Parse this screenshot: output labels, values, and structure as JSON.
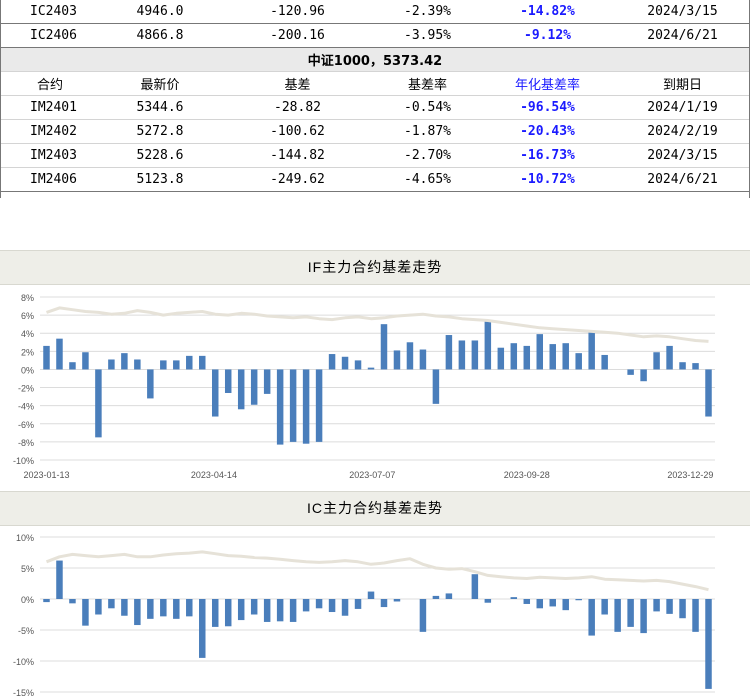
{
  "table": {
    "top_rows": [
      {
        "contract": "IC2403",
        "price": "4946.0",
        "basis": "-120.96",
        "rate": "-2.39%",
        "annual": "-14.82%",
        "expiry": "2024/3/15"
      },
      {
        "contract": "IC2406",
        "price": "4866.8",
        "basis": "-200.16",
        "rate": "-3.95%",
        "annual": "-9.12%",
        "expiry": "2024/6/21"
      }
    ],
    "section_title": "中证1000，5373.42",
    "headers": [
      "合约",
      "最新价",
      "基差",
      "基差率",
      "年化基差率",
      "到期日"
    ],
    "rows": [
      {
        "contract": "IM2401",
        "price": "5344.6",
        "basis": "-28.82",
        "rate": "-0.54%",
        "annual": "-96.54%",
        "expiry": "2024/1/19"
      },
      {
        "contract": "IM2402",
        "price": "5272.8",
        "basis": "-100.62",
        "rate": "-1.87%",
        "annual": "-20.43%",
        "expiry": "2024/2/19"
      },
      {
        "contract": "IM2403",
        "price": "5228.6",
        "basis": "-144.82",
        "rate": "-2.70%",
        "annual": "-16.73%",
        "expiry": "2024/3/15"
      },
      {
        "contract": "IM2406",
        "price": "5123.8",
        "basis": "-249.62",
        "rate": "-4.65%",
        "annual": "-10.72%",
        "expiry": "2024/6/21"
      }
    ]
  },
  "chart_data": [
    {
      "type": "bar",
      "title": "IF主力合约基差走势",
      "ylim": [
        -10,
        8
      ],
      "yticks": [
        8,
        6,
        4,
        2,
        0,
        -2,
        -4,
        -6,
        -8,
        -10
      ],
      "ytick_labels": [
        "8%",
        "6%",
        "4%",
        "2%",
        "0%",
        "-2%",
        "-4%",
        "-6%",
        "-8%",
        "-10%"
      ],
      "x_tick_labels": [
        "2023-01-13",
        "2023-04-14",
        "2023-07-07",
        "2023-09-28",
        "2023-12-29"
      ],
      "bar_color": "#4a7ebb",
      "line_color": "#e6e2d8",
      "grid": true,
      "bars": [
        2.6,
        3.4,
        0.8,
        1.9,
        -7.5,
        1.1,
        1.8,
        1.1,
        -3.2,
        1.0,
        1.0,
        1.5,
        1.5,
        -5.2,
        -2.6,
        -4.4,
        -3.9,
        -2.7,
        -8.3,
        -8.0,
        -8.2,
        -8.0,
        1.7,
        1.4,
        1.0,
        0.2,
        5.0,
        2.1,
        3.0,
        2.2,
        -3.8,
        3.8,
        3.2,
        3.2,
        5.5,
        2.4,
        2.9,
        2.6,
        3.9,
        2.8,
        2.9,
        1.8,
        4.1,
        1.6,
        0.0,
        -0.6,
        -1.3,
        1.9,
        2.6,
        0.8,
        0.7,
        -5.2
      ],
      "line": [
        6.3,
        6.8,
        6.6,
        6.4,
        6.3,
        6.1,
        6.2,
        6.5,
        6.3,
        6.0,
        6.2,
        6.3,
        6.4,
        6.1,
        6.0,
        6.2,
        6.1,
        5.9,
        5.8,
        5.7,
        5.8,
        5.6,
        5.5,
        5.7,
        5.8,
        5.6,
        5.7,
        5.9,
        6.0,
        6.1,
        5.9,
        5.8,
        5.6,
        5.5,
        5.4,
        5.2,
        5.0,
        4.8,
        4.6,
        4.5,
        4.4,
        4.3,
        4.2,
        4.1,
        4.0,
        3.8,
        3.6,
        3.7,
        3.6,
        3.4,
        3.2,
        3.1
      ]
    },
    {
      "type": "bar",
      "title": "IC主力合约基差走势",
      "ylim": [
        -15,
        10
      ],
      "yticks": [
        10,
        5,
        0,
        -5,
        -10,
        -15
      ],
      "ytick_labels": [
        "10%",
        "5%",
        "0%",
        "-5%",
        "-10%",
        "-15%"
      ],
      "bar_color": "#4a7ebb",
      "line_color": "#e6e2d8",
      "grid": true,
      "bars": [
        -0.5,
        6.2,
        -0.7,
        -4.3,
        -2.5,
        -1.5,
        -2.7,
        -4.2,
        -3.2,
        -2.8,
        -3.2,
        -2.8,
        -9.5,
        -4.5,
        -4.4,
        -3.4,
        -2.5,
        -3.7,
        -3.6,
        -3.7,
        -2.0,
        -1.5,
        -2.1,
        -2.7,
        -1.6,
        1.2,
        -1.3,
        -0.4,
        0.0,
        -5.3,
        0.5,
        0.9,
        0.0,
        4.0,
        -0.6,
        0.0,
        0.3,
        -0.8,
        -1.5,
        -1.2,
        -1.8,
        -0.2,
        -5.9,
        -2.5,
        -5.3,
        -4.5,
        -5.5,
        -2.0,
        -2.4,
        -3.1,
        -5.3,
        -14.5
      ],
      "line": [
        6.0,
        6.8,
        7.2,
        7.0,
        6.8,
        7.0,
        7.2,
        6.8,
        6.8,
        7.1,
        7.3,
        7.4,
        7.6,
        7.3,
        7.0,
        6.9,
        6.7,
        6.6,
        6.4,
        6.2,
        6.0,
        5.9,
        6.0,
        6.2,
        6.0,
        5.6,
        5.8,
        6.2,
        6.5,
        5.6,
        5.0,
        4.8,
        4.9,
        4.4,
        3.8,
        3.6,
        3.4,
        3.3,
        3.5,
        3.4,
        3.3,
        3.4,
        3.6,
        3.2,
        3.1,
        3.0,
        2.9,
        3.0,
        2.8,
        2.4,
        2.0,
        1.5
      ]
    }
  ]
}
